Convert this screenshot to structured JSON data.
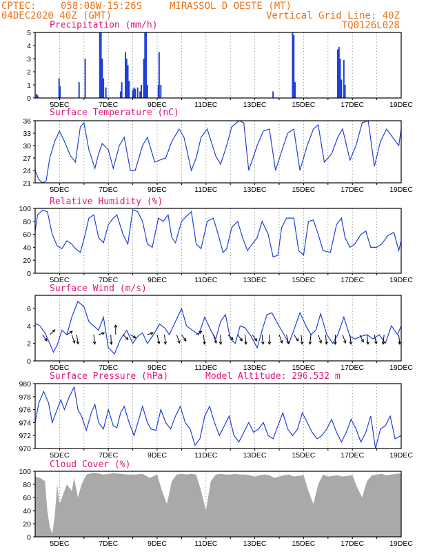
{
  "header": {
    "line1_left": "CPTEC:",
    "line1_coords": "058:08W-15:26S",
    "line1_city": "MIRASSOL D OESTE (MT)",
    "line2_left": "04DEC2020 40Z (GMT)",
    "line2_right": "Vertical Grid Line: 40Z",
    "line3_right": "TQ0126L028"
  },
  "colors": {
    "series": "#1f3fd8",
    "header": "#e8741e",
    "title": "#e0157a",
    "cloud": "#a9a9a9",
    "wind_vector": "#000000"
  },
  "x_tick_labels": [
    "5DEC",
    "7DEC",
    "9DEC",
    "11DEC",
    "13DEC",
    "15DEC",
    "17DEC",
    "19DEC"
  ],
  "chart_data": [
    {
      "id": "precip",
      "type": "bar",
      "title": "Precipitation (mm/h)",
      "x_unit": "days since 04DEC2020 00Z",
      "xlim": [
        0,
        15
      ],
      "ylim": [
        0,
        5
      ],
      "yticks": [
        0,
        1,
        2,
        3,
        4,
        5
      ],
      "bars": [
        [
          0.05,
          0.3
        ],
        [
          0.1,
          0.2
        ],
        [
          0.98,
          1.5
        ],
        [
          1.02,
          0.9
        ],
        [
          1.8,
          1.2
        ],
        [
          2.05,
          3.0
        ],
        [
          2.65,
          5
        ],
        [
          2.7,
          5
        ],
        [
          2.75,
          3
        ],
        [
          2.8,
          1.5
        ],
        [
          2.9,
          0.8
        ],
        [
          3.5,
          0.5
        ],
        [
          3.55,
          1.2
        ],
        [
          3.7,
          3.5
        ],
        [
          3.75,
          3.0
        ],
        [
          3.8,
          2.5
        ],
        [
          3.85,
          1.3
        ],
        [
          4.0,
          0.6
        ],
        [
          4.05,
          0.8
        ],
        [
          4.1,
          0.7
        ],
        [
          4.2,
          0.8
        ],
        [
          4.3,
          0.5
        ],
        [
          4.35,
          1.0
        ],
        [
          4.45,
          3.0
        ],
        [
          4.5,
          5
        ],
        [
          4.55,
          5
        ],
        [
          4.6,
          1.0
        ],
        [
          5.05,
          1.0
        ],
        [
          5.08,
          3.5
        ],
        [
          5.15,
          1.0
        ],
        [
          9.75,
          0.5
        ],
        [
          10.55,
          5
        ],
        [
          10.6,
          4.8
        ],
        [
          10.65,
          1.2
        ],
        [
          12.4,
          3.7
        ],
        [
          12.45,
          3.9
        ],
        [
          12.5,
          3.0
        ],
        [
          12.55,
          1.4
        ],
        [
          12.65,
          2.9
        ],
        [
          12.7,
          1.0
        ]
      ]
    },
    {
      "id": "temp",
      "type": "line",
      "title": "Surface Temperature (nC)",
      "xlim": [
        0,
        15
      ],
      "ylim": [
        21,
        36
      ],
      "yticks": [
        21,
        24,
        27,
        30,
        33,
        36
      ],
      "x": [
        0.0,
        0.15,
        0.3,
        0.45,
        0.6,
        0.8,
        1.0,
        1.2,
        1.45,
        1.65,
        1.85,
        2.0,
        2.2,
        2.45,
        2.6,
        2.75,
        3.0,
        3.2,
        3.45,
        3.65,
        3.9,
        4.1,
        4.4,
        4.6,
        4.9,
        5.1,
        5.35,
        5.6,
        5.9,
        6.1,
        6.4,
        6.6,
        6.8,
        7.05,
        7.4,
        7.6,
        7.85,
        8.05,
        8.35,
        8.55,
        8.75,
        9.1,
        9.35,
        9.6,
        9.85,
        10.15,
        10.35,
        10.6,
        10.85,
        11.15,
        11.4,
        11.6,
        11.85,
        12.15,
        12.4,
        12.6,
        12.9,
        13.15,
        13.4,
        13.65,
        13.9,
        14.15,
        14.4,
        14.65,
        14.9,
        15.0
      ],
      "values": [
        24.0,
        21.8,
        21.0,
        21.5,
        27.0,
        31.0,
        33.5,
        31.0,
        27.5,
        26.0,
        34.5,
        35.5,
        29.0,
        24.5,
        28.0,
        30.5,
        29.0,
        24.5,
        30.0,
        32.0,
        24.0,
        24.0,
        30.0,
        32.0,
        26.0,
        26.5,
        27.0,
        31.0,
        34.0,
        32.0,
        24.0,
        27.0,
        32.0,
        34.0,
        27.5,
        25.5,
        30.0,
        34.5,
        36.0,
        35.5,
        24.0,
        30.0,
        33.5,
        34.0,
        24.0,
        29.5,
        33.0,
        34.0,
        24.0,
        30.0,
        34.0,
        35.0,
        26.0,
        28.0,
        32.0,
        34.0,
        26.5,
        30.0,
        35.5,
        36.0,
        25.0,
        31.0,
        34.0,
        32.0,
        30.0,
        34.0
      ]
    },
    {
      "id": "rh",
      "type": "line",
      "title": "Relative Humidity (%)",
      "xlim": [
        0,
        15
      ],
      "ylim": [
        0,
        100
      ],
      "yticks": [
        0,
        20,
        40,
        60,
        80,
        100
      ],
      "x": [
        0.0,
        0.1,
        0.3,
        0.5,
        0.7,
        0.9,
        1.1,
        1.3,
        1.5,
        1.65,
        1.85,
        2.05,
        2.2,
        2.4,
        2.6,
        2.8,
        3.0,
        3.2,
        3.35,
        3.6,
        3.8,
        4.0,
        4.2,
        4.4,
        4.6,
        4.8,
        5.05,
        5.25,
        5.45,
        5.6,
        5.75,
        6.0,
        6.2,
        6.4,
        6.6,
        6.8,
        7.05,
        7.3,
        7.5,
        7.7,
        7.85,
        8.05,
        8.3,
        8.5,
        8.7,
        8.9,
        9.1,
        9.3,
        9.55,
        9.75,
        9.95,
        10.1,
        10.3,
        10.6,
        10.8,
        11.0,
        11.2,
        11.4,
        11.6,
        11.8,
        12.1,
        12.35,
        12.55,
        12.7,
        12.9,
        13.1,
        13.35,
        13.55,
        13.75,
        14.0,
        14.2,
        14.45,
        14.7,
        14.9,
        15.0
      ],
      "values": [
        65.0,
        90.0,
        97.0,
        95.0,
        60.0,
        42.0,
        38.0,
        50.0,
        45.0,
        38.0,
        32.0,
        60.0,
        85.0,
        90.0,
        55.0,
        47.0,
        75.0,
        85.0,
        90.0,
        60.0,
        45.0,
        98.0,
        95.0,
        80.0,
        45.0,
        40.0,
        85.0,
        80.0,
        90.0,
        55.0,
        47.0,
        80.0,
        88.0,
        95.0,
        45.0,
        38.0,
        80.0,
        85.0,
        60.0,
        32.0,
        38.0,
        70.0,
        80.0,
        55.0,
        35.0,
        45.0,
        55.0,
        80.0,
        60.0,
        25.0,
        28.0,
        70.0,
        85.0,
        85.0,
        35.0,
        28.0,
        80.0,
        82.0,
        60.0,
        35.0,
        32.0,
        75.0,
        85.0,
        55.0,
        40.0,
        45.0,
        60.0,
        65.0,
        40.0,
        40.0,
        45.0,
        58.0,
        63.0,
        35.0,
        50.0
      ]
    },
    {
      "id": "wind",
      "type": "line",
      "title": "Surface Wind (m/s)",
      "xlim": [
        0,
        15
      ],
      "ylim": [
        0,
        7.5
      ],
      "yticks": [
        0,
        2,
        4,
        6
      ],
      "x": [
        0.0,
        0.2,
        0.4,
        0.6,
        0.75,
        0.9,
        1.1,
        1.3,
        1.5,
        1.75,
        2.0,
        2.2,
        2.4,
        2.6,
        2.8,
        3.0,
        3.25,
        3.5,
        3.75,
        4.0,
        4.2,
        4.4,
        4.6,
        4.85,
        5.1,
        5.3,
        5.5,
        5.75,
        6.0,
        6.2,
        6.45,
        6.7,
        6.95,
        7.2,
        7.4,
        7.6,
        7.8,
        8.0,
        8.2,
        8.4,
        8.6,
        8.85,
        9.1,
        9.3,
        9.5,
        9.7,
        9.95,
        10.2,
        10.4,
        10.6,
        10.85,
        11.1,
        11.3,
        11.5,
        11.7,
        11.95,
        12.2,
        12.4,
        12.65,
        12.9,
        13.1,
        13.35,
        13.6,
        13.85,
        14.1,
        14.35,
        14.6,
        14.85,
        15.0
      ],
      "values": [
        4.3,
        4.0,
        3.2,
        2.0,
        1.0,
        1.8,
        3.5,
        3.0,
        5.0,
        6.8,
        6.2,
        4.5,
        4.0,
        3.5,
        5.0,
        1.5,
        0.8,
        2.5,
        3.5,
        2.0,
        2.8,
        3.2,
        2.0,
        3.0,
        4.2,
        3.8,
        3.0,
        4.5,
        6.0,
        4.0,
        3.5,
        3.0,
        5.0,
        3.5,
        2.5,
        4.5,
        5.3,
        2.5,
        2.0,
        4.0,
        3.8,
        2.8,
        1.5,
        3.5,
        5.3,
        5.5,
        4.2,
        3.0,
        2.0,
        3.5,
        5.5,
        4.0,
        3.0,
        3.5,
        5.4,
        3.0,
        2.0,
        3.0,
        5.0,
        2.8,
        2.5,
        2.8,
        3.0,
        2.5,
        3.0,
        2.0,
        4.0,
        3.0,
        4.0
      ]
    },
    {
      "id": "pres",
      "type": "line",
      "title": "Surface Pressure (hPa)",
      "annotation": "Model Altitude: 296.532 m",
      "xlim": [
        0,
        15
      ],
      "ylim": [
        970,
        980
      ],
      "yticks": [
        970,
        972,
        974,
        976,
        978,
        980
      ],
      "x": [
        0.0,
        0.15,
        0.35,
        0.55,
        0.7,
        0.85,
        1.05,
        1.2,
        1.4,
        1.6,
        1.75,
        1.9,
        2.1,
        2.3,
        2.45,
        2.6,
        2.8,
        3.0,
        3.2,
        3.35,
        3.5,
        3.65,
        3.85,
        4.05,
        4.25,
        4.4,
        4.6,
        4.75,
        4.95,
        5.15,
        5.35,
        5.55,
        5.75,
        5.95,
        6.15,
        6.35,
        6.55,
        6.75,
        6.95,
        7.15,
        7.35,
        7.55,
        7.75,
        7.95,
        8.15,
        8.35,
        8.55,
        8.75,
        8.95,
        9.15,
        9.35,
        9.55,
        9.75,
        9.95,
        10.15,
        10.35,
        10.55,
        10.75,
        10.95,
        11.15,
        11.35,
        11.55,
        11.75,
        11.95,
        12.15,
        12.35,
        12.55,
        12.75,
        12.95,
        13.15,
        13.35,
        13.55,
        13.75,
        13.95,
        14.15,
        14.35,
        14.55,
        14.75,
        15.0
      ],
      "values": [
        974.0,
        977.0,
        978.8,
        977.0,
        974.0,
        975.5,
        977.5,
        976.0,
        978.0,
        979.5,
        976.0,
        975.0,
        972.8,
        975.5,
        976.8,
        974.0,
        973.0,
        976.0,
        973.5,
        973.2,
        975.5,
        976.5,
        974.0,
        972.0,
        974.5,
        976.5,
        974.0,
        973.0,
        972.8,
        976.0,
        974.0,
        973.0,
        975.0,
        976.5,
        974.0,
        973.0,
        970.5,
        971.5,
        975.0,
        976.5,
        974.0,
        972.0,
        973.5,
        975.0,
        972.0,
        971.0,
        972.5,
        974.0,
        972.5,
        973.0,
        974.0,
        972.0,
        971.5,
        973.5,
        975.5,
        973.0,
        972.0,
        973.0,
        975.5,
        974.0,
        972.5,
        971.5,
        972.0,
        973.0,
        974.5,
        972.5,
        971.0,
        972.5,
        974.5,
        973.0,
        971.0,
        972.5,
        975.0,
        970.0,
        973.0,
        973.5,
        975.0,
        971.5,
        972.0
      ]
    },
    {
      "id": "cloud",
      "type": "area",
      "title": "Cloud Cover (%)",
      "xlim": [
        0,
        15
      ],
      "ylim": [
        0,
        100
      ],
      "yticks": [
        0,
        20,
        40,
        60,
        80,
        100
      ],
      "x": [
        0.0,
        0.2,
        0.4,
        0.5,
        0.6,
        0.7,
        0.8,
        0.9,
        1.0,
        1.1,
        1.3,
        1.5,
        1.6,
        1.75,
        1.9,
        2.1,
        2.4,
        2.8,
        3.2,
        3.5,
        3.8,
        4.1,
        4.4,
        4.7,
        5.0,
        5.2,
        5.4,
        5.6,
        5.8,
        6.0,
        6.2,
        6.4,
        6.6,
        6.8,
        7.0,
        7.2,
        7.4,
        7.6,
        7.8,
        8.0,
        8.2,
        8.4,
        8.6,
        8.8,
        9.0,
        9.2,
        9.4,
        9.6,
        9.8,
        10.0,
        10.2,
        10.4,
        10.6,
        10.8,
        11.0,
        11.2,
        11.4,
        11.6,
        11.8,
        12.0,
        12.2,
        12.4,
        12.6,
        12.8,
        13.0,
        13.2,
        13.4,
        13.6,
        13.8,
        14.0,
        14.2,
        14.4,
        14.6,
        14.8,
        15.0
      ],
      "values": [
        92.0,
        90.0,
        85.0,
        40.0,
        15.0,
        5.0,
        30.0,
        80.0,
        50.0,
        60.0,
        80.0,
        70.0,
        90.0,
        60.0,
        80.0,
        95.0,
        98.0,
        95.0,
        97.0,
        96.0,
        95.0,
        95.0,
        96.0,
        90.0,
        95.0,
        70.0,
        50.0,
        85.0,
        95.0,
        96.0,
        95.0,
        96.0,
        95.0,
        70.0,
        40.0,
        85.0,
        95.0,
        96.0,
        95.0,
        95.0,
        96.0,
        95.0,
        95.0,
        94.0,
        92.0,
        94.0,
        95.0,
        94.0,
        90.0,
        92.0,
        94.0,
        95.0,
        92.0,
        93.0,
        94.0,
        70.0,
        50.0,
        80.0,
        95.0,
        92.0,
        93.0,
        94.0,
        92.0,
        93.0,
        94.0,
        75.0,
        60.0,
        85.0,
        94.0,
        95.0,
        96.0,
        94.0,
        95.0,
        96.0,
        97.0
      ]
    }
  ]
}
